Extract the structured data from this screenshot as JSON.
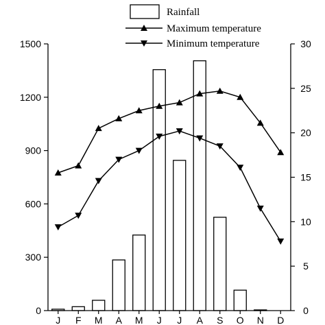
{
  "chart_data": {
    "type": "bar",
    "categories": [
      "Jan",
      "Feb",
      "Mar",
      "Apr",
      "May",
      "Jun",
      "Jul",
      "Aug",
      "Sep",
      "Oct",
      "Nov",
      "Dec"
    ],
    "series": [
      {
        "name": "Rainfall",
        "type": "bar",
        "axis": "left",
        "values": [
          8,
          22,
          58,
          285,
          425,
          1355,
          845,
          1405,
          525,
          115,
          4,
          0
        ]
      },
      {
        "name": "Maximum temperature",
        "type": "line",
        "axis": "right",
        "marker": "triangle-up",
        "values": [
          15.5,
          16.3,
          20.5,
          21.6,
          22.5,
          23.0,
          23.4,
          24.4,
          24.7,
          24.0,
          21.1,
          17.8
        ]
      },
      {
        "name": "Minimum temperature",
        "type": "line",
        "axis": "right",
        "marker": "triangle-down",
        "values": [
          9.4,
          10.7,
          14.6,
          17.0,
          18.0,
          19.6,
          20.2,
          19.4,
          18.5,
          16.1,
          11.5,
          7.8
        ]
      }
    ],
    "y_left": {
      "ticks": [
        "0",
        "300",
        "600",
        "900",
        "1200",
        "1500"
      ],
      "min": 0,
      "max": 1500
    },
    "y_right": {
      "ticks": [
        "0",
        "5",
        "10",
        "15",
        "20",
        "25",
        "30"
      ],
      "min": 0,
      "max": 30
    },
    "x_tick_labels": [
      "J",
      "F",
      "M",
      "A",
      "M",
      "J",
      "J",
      "A",
      "S",
      "O",
      "N",
      "D"
    ],
    "legend_position": "top-center",
    "grid": false
  }
}
